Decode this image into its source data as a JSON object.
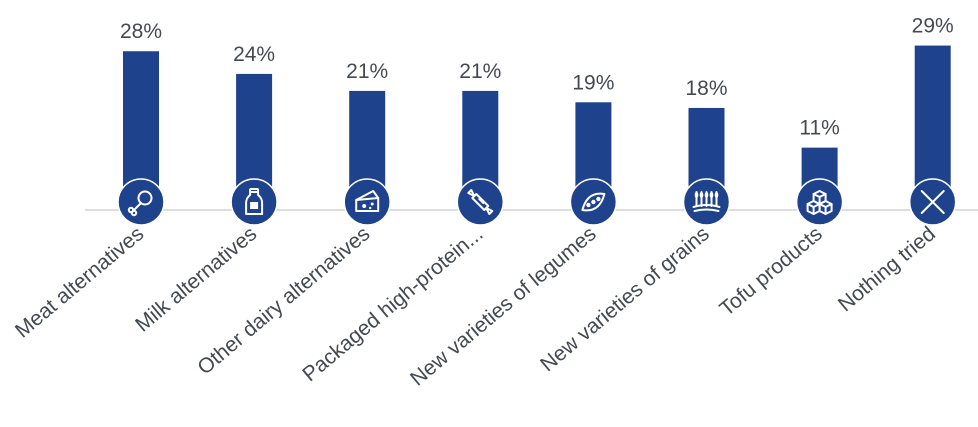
{
  "chart_data": {
    "type": "bar",
    "categories": [
      "Meat alternatives",
      "Milk alternatives",
      "Other dairy alternatives",
      "Packaged high-protein...",
      "New varieties of legumes",
      "New varieties of grains",
      "Tofu products",
      "Nothing tried"
    ],
    "values": [
      28,
      24,
      21,
      21,
      19,
      18,
      11,
      29
    ],
    "value_labels": [
      "28%",
      "24%",
      "21%",
      "21%",
      "19%",
      "18%",
      "11%",
      "29%"
    ],
    "icons": [
      "drumstick-icon",
      "milk-bottle-icon",
      "cheese-icon",
      "candy-bar-icon",
      "pea-pod-icon",
      "wheat-field-icon",
      "tofu-cubes-icon",
      "close-x-icon"
    ],
    "ylim": [
      0,
      30
    ],
    "grid": false,
    "legend": "none",
    "colors": {
      "bar": "#1f428c",
      "icon_circle": "#1f428c",
      "baseline": "#d0d3d8",
      "text": "#444a52"
    }
  }
}
